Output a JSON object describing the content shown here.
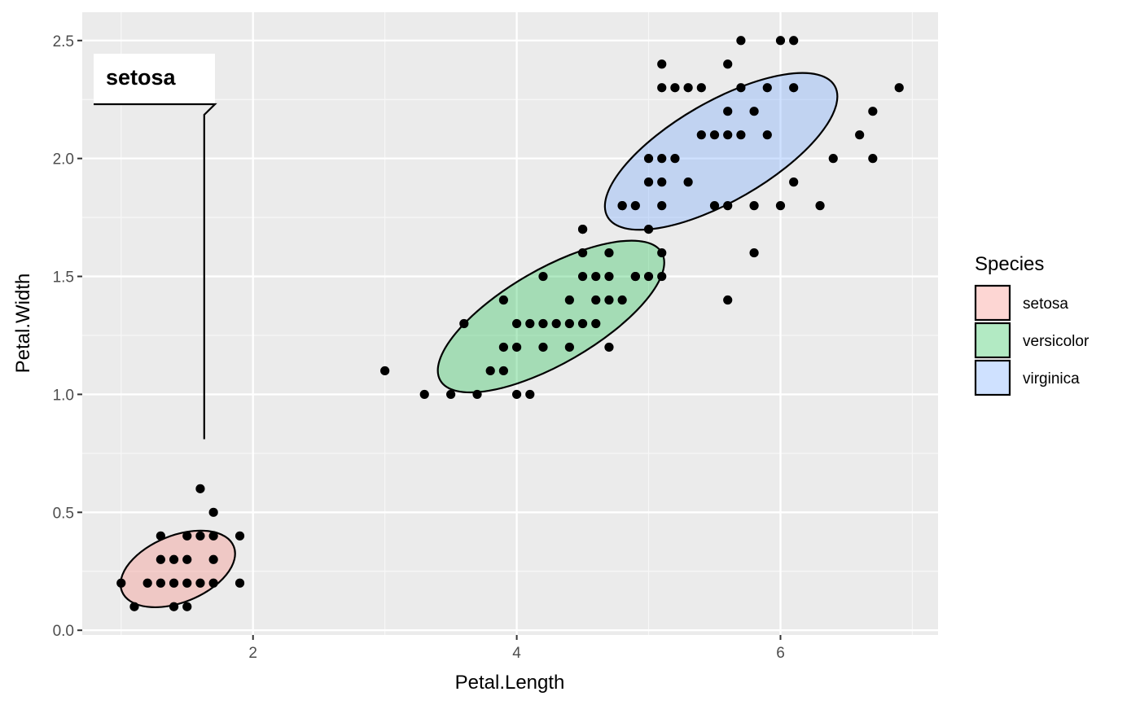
{
  "chart_data": {
    "type": "scatter",
    "xlabel": "Petal.Length",
    "ylabel": "Petal.Width",
    "xlim": [
      0.705,
      7.195
    ],
    "ylim": [
      -0.02,
      2.62
    ],
    "x_ticks": [
      2,
      4,
      6
    ],
    "y_ticks": [
      0.0,
      0.5,
      1.0,
      1.5,
      2.0,
      2.5
    ],
    "x_tick_labels": [
      "2",
      "4",
      "6"
    ],
    "y_tick_labels": [
      "0.0",
      "0.5",
      "1.0",
      "1.5",
      "2.0",
      "2.5"
    ],
    "grid": true,
    "legend": {
      "title": "Species",
      "position": "right"
    },
    "series": [
      {
        "name": "setosa",
        "fill_color": "#F8766D",
        "ellipse": {
          "cx": 1.43,
          "cy": 0.26,
          "rx": 0.74,
          "ry": 0.41,
          "angle_deg": -22
        },
        "points": [
          [
            1.0,
            0.2
          ],
          [
            1.1,
            0.1
          ],
          [
            1.2,
            0.2
          ],
          [
            1.3,
            0.4
          ],
          [
            1.3,
            0.3
          ],
          [
            1.3,
            0.2
          ],
          [
            1.4,
            0.3
          ],
          [
            1.4,
            0.2
          ],
          [
            1.4,
            0.1
          ],
          [
            1.5,
            0.4
          ],
          [
            1.5,
            0.3
          ],
          [
            1.5,
            0.2
          ],
          [
            1.5,
            0.1
          ],
          [
            1.6,
            0.6
          ],
          [
            1.6,
            0.4
          ],
          [
            1.6,
            0.2
          ],
          [
            1.7,
            0.5
          ],
          [
            1.7,
            0.4
          ],
          [
            1.7,
            0.3
          ],
          [
            1.7,
            0.2
          ],
          [
            1.9,
            0.4
          ],
          [
            1.9,
            0.2
          ]
        ]
      },
      {
        "name": "versicolor",
        "fill_color": "#00BA38",
        "ellipse": {
          "cx": 4.26,
          "cy": 1.33,
          "rx": 1.57,
          "ry": 0.58,
          "angle_deg": -30
        },
        "points": [
          [
            3.0,
            1.1
          ],
          [
            3.3,
            1.0
          ],
          [
            3.5,
            1.0
          ],
          [
            3.6,
            1.3
          ],
          [
            3.7,
            1.0
          ],
          [
            3.8,
            1.1
          ],
          [
            3.9,
            1.4
          ],
          [
            3.9,
            1.2
          ],
          [
            3.9,
            1.1
          ],
          [
            4.0,
            1.3
          ],
          [
            4.0,
            1.2
          ],
          [
            4.0,
            1.0
          ],
          [
            4.1,
            1.3
          ],
          [
            4.1,
            1.0
          ],
          [
            4.2,
            1.5
          ],
          [
            4.2,
            1.3
          ],
          [
            4.2,
            1.2
          ],
          [
            4.3,
            1.3
          ],
          [
            4.4,
            1.4
          ],
          [
            4.4,
            1.3
          ],
          [
            4.4,
            1.2
          ],
          [
            4.5,
            1.7
          ],
          [
            4.5,
            1.6
          ],
          [
            4.5,
            1.5
          ],
          [
            4.5,
            1.3
          ],
          [
            4.6,
            1.5
          ],
          [
            4.6,
            1.4
          ],
          [
            4.6,
            1.3
          ],
          [
            4.7,
            1.6
          ],
          [
            4.7,
            1.5
          ],
          [
            4.7,
            1.4
          ],
          [
            4.7,
            1.2
          ],
          [
            4.8,
            1.8
          ],
          [
            4.8,
            1.4
          ],
          [
            4.9,
            1.5
          ],
          [
            5.0,
            1.7
          ],
          [
            5.1,
            1.6
          ]
        ]
      },
      {
        "name": "virginica",
        "fill_color": "#619CFF",
        "ellipse": {
          "cx": 5.55,
          "cy": 2.03,
          "rx": 1.61,
          "ry": 0.61,
          "angle_deg": -30
        },
        "points": [
          [
            4.5,
            1.7
          ],
          [
            4.8,
            1.8
          ],
          [
            4.9,
            1.8
          ],
          [
            4.9,
            1.5
          ],
          [
            5.0,
            2.0
          ],
          [
            5.0,
            1.9
          ],
          [
            5.0,
            1.5
          ],
          [
            5.1,
            2.4
          ],
          [
            5.1,
            2.3
          ],
          [
            5.1,
            2.0
          ],
          [
            5.1,
            1.9
          ],
          [
            5.1,
            1.8
          ],
          [
            5.1,
            1.5
          ],
          [
            5.2,
            2.3
          ],
          [
            5.2,
            2.0
          ],
          [
            5.3,
            2.3
          ],
          [
            5.3,
            1.9
          ],
          [
            5.4,
            2.3
          ],
          [
            5.4,
            2.1
          ],
          [
            5.5,
            2.1
          ],
          [
            5.5,
            1.8
          ],
          [
            5.6,
            2.4
          ],
          [
            5.6,
            2.2
          ],
          [
            5.6,
            2.1
          ],
          [
            5.6,
            1.8
          ],
          [
            5.6,
            1.4
          ],
          [
            5.7,
            2.5
          ],
          [
            5.7,
            2.3
          ],
          [
            5.7,
            2.1
          ],
          [
            5.8,
            2.2
          ],
          [
            5.8,
            1.8
          ],
          [
            5.8,
            1.6
          ],
          [
            5.9,
            2.3
          ],
          [
            5.9,
            2.1
          ],
          [
            6.0,
            2.5
          ],
          [
            6.0,
            1.8
          ],
          [
            6.1,
            2.5
          ],
          [
            6.1,
            2.3
          ],
          [
            6.1,
            1.9
          ],
          [
            6.3,
            1.8
          ],
          [
            6.4,
            2.0
          ],
          [
            6.6,
            2.1
          ],
          [
            6.7,
            2.2
          ],
          [
            6.7,
            2.0
          ],
          [
            6.9,
            2.3
          ]
        ]
      }
    ],
    "annotations": [
      {
        "text": "setosa",
        "target_x": 1.63,
        "target_y": 0.81,
        "series": "setosa"
      }
    ]
  }
}
